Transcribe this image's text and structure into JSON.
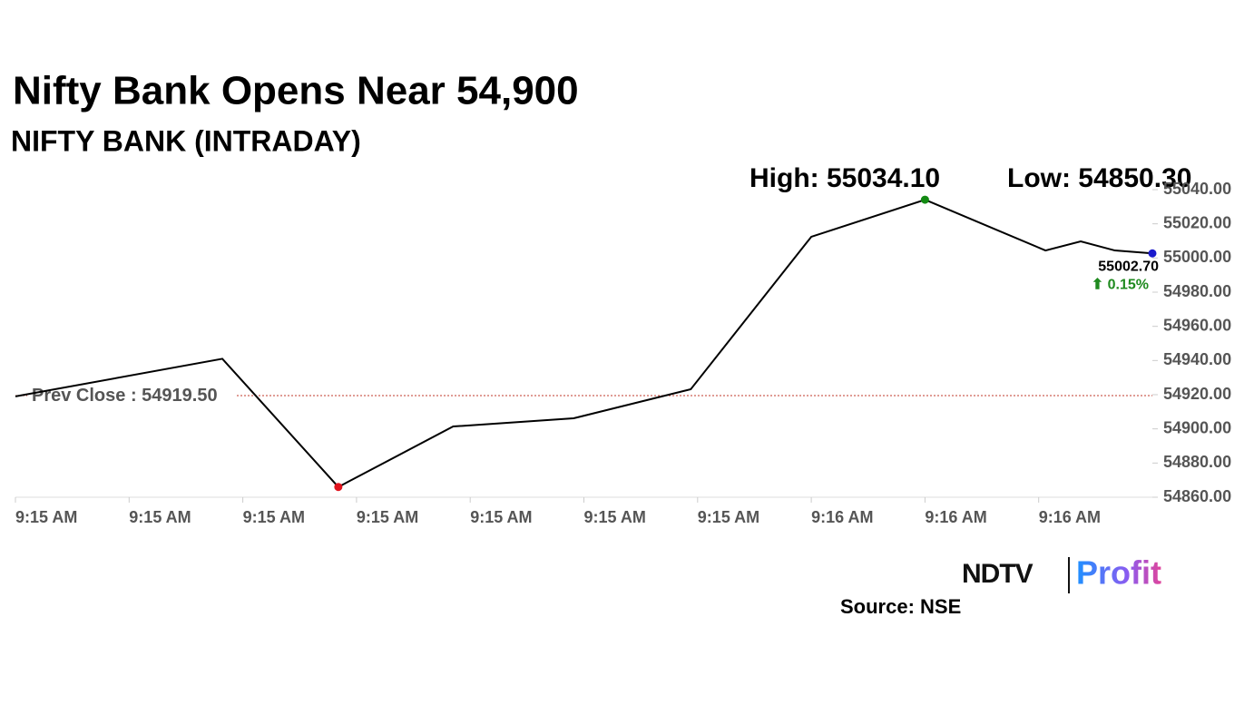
{
  "chart_data": {
    "type": "line",
    "title": "Nifty Bank Opens Near 54,900",
    "subtitle": "NIFTY BANK (INTRADAY)",
    "high_label": "High: 55034.10",
    "low_label": "Low: 54850.30",
    "prev_close": 54919.5,
    "prev_close_label": "Prev Close : 54919.50",
    "last_label": "55002.70",
    "change_label": "⬆ 0.15%",
    "source": "Source: NSE",
    "logo": {
      "left": "NDTV",
      "right": "Profit"
    },
    "xlim": [
      0,
      10
    ],
    "xticks": [
      {
        "value": 0,
        "label": "9:15 AM"
      },
      {
        "value": 1,
        "label": "9:15 AM"
      },
      {
        "value": 2,
        "label": "9:15 AM"
      },
      {
        "value": 3,
        "label": "9:15 AM"
      },
      {
        "value": 4,
        "label": "9:15 AM"
      },
      {
        "value": 5,
        "label": "9:15 AM"
      },
      {
        "value": 6,
        "label": "9:15 AM"
      },
      {
        "value": 7,
        "label": "9:16 AM"
      },
      {
        "value": 8,
        "label": "9:16 AM"
      },
      {
        "value": 9,
        "label": "9:16 AM"
      }
    ],
    "ylim": [
      54860,
      55040
    ],
    "yticks": [
      {
        "value": 55040,
        "label": "55040.00"
      },
      {
        "value": 55020,
        "label": "55020.00"
      },
      {
        "value": 55000,
        "label": "55000.00"
      },
      {
        "value": 54980,
        "label": "54980.00"
      },
      {
        "value": 54960,
        "label": "54960.00"
      },
      {
        "value": 54940,
        "label": "54940.00"
      },
      {
        "value": 54920,
        "label": "54920.00"
      },
      {
        "value": 54900,
        "label": "54900.00"
      },
      {
        "value": 54880,
        "label": "54880.00"
      },
      {
        "value": 54860,
        "label": "54860.00"
      }
    ],
    "series": [
      {
        "color": "#000000",
        "x": [
          0,
          1.82,
          2.84,
          3.85,
          4.91,
          5.94,
          7.0,
          8.0,
          9.06,
          9.37,
          9.67,
          10.0
        ],
        "values": [
          54919,
          54941,
          54866,
          54901.4,
          54906.2,
          54923.2,
          55012.4,
          55034.1,
          55004.4,
          55009.7,
          55004.4,
          55002.7
        ]
      }
    ],
    "markers": [
      {
        "index": 7,
        "color": "#138a13"
      },
      {
        "index": 2,
        "color": "#e0141e"
      },
      {
        "index": 11,
        "color": "#1a1acc"
      }
    ],
    "prev_close_color": "#c0392b",
    "change_color": "#1f8a1f"
  }
}
